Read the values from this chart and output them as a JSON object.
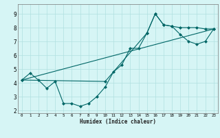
{
  "xlabel": "Humidex (Indice chaleur)",
  "background_color": "#d6f5f5",
  "line_color": "#006666",
  "xlim": [
    -0.5,
    23.5
  ],
  "ylim": [
    1.8,
    9.7
  ],
  "xticks": [
    0,
    1,
    2,
    3,
    4,
    5,
    6,
    7,
    8,
    9,
    10,
    11,
    12,
    13,
    14,
    15,
    16,
    17,
    18,
    19,
    20,
    21,
    22,
    23
  ],
  "yticks": [
    2,
    3,
    4,
    5,
    6,
    7,
    8,
    9
  ],
  "series": [
    {
      "x": [
        0,
        1,
        2,
        3,
        4,
        5,
        6,
        7,
        8,
        9,
        10,
        11,
        12,
        13,
        14,
        15,
        16,
        17,
        18,
        19,
        20,
        21,
        22,
        23
      ],
      "y": [
        4.2,
        4.7,
        4.2,
        3.6,
        4.1,
        2.5,
        2.5,
        2.3,
        2.5,
        3.0,
        3.7,
        4.8,
        5.3,
        6.5,
        6.5,
        7.6,
        9.0,
        8.2,
        8.1,
        8.0,
        8.0,
        8.0,
        7.9,
        7.9
      ],
      "has_markers": true
    },
    {
      "x": [
        0,
        10,
        15,
        16,
        17,
        18,
        19,
        20,
        21,
        22,
        23
      ],
      "y": [
        4.2,
        4.1,
        7.6,
        9.0,
        8.2,
        8.1,
        7.5,
        7.0,
        6.8,
        7.0,
        7.9
      ],
      "has_markers": true
    },
    {
      "x": [
        0,
        23
      ],
      "y": [
        4.2,
        7.9
      ],
      "has_markers": false
    }
  ]
}
